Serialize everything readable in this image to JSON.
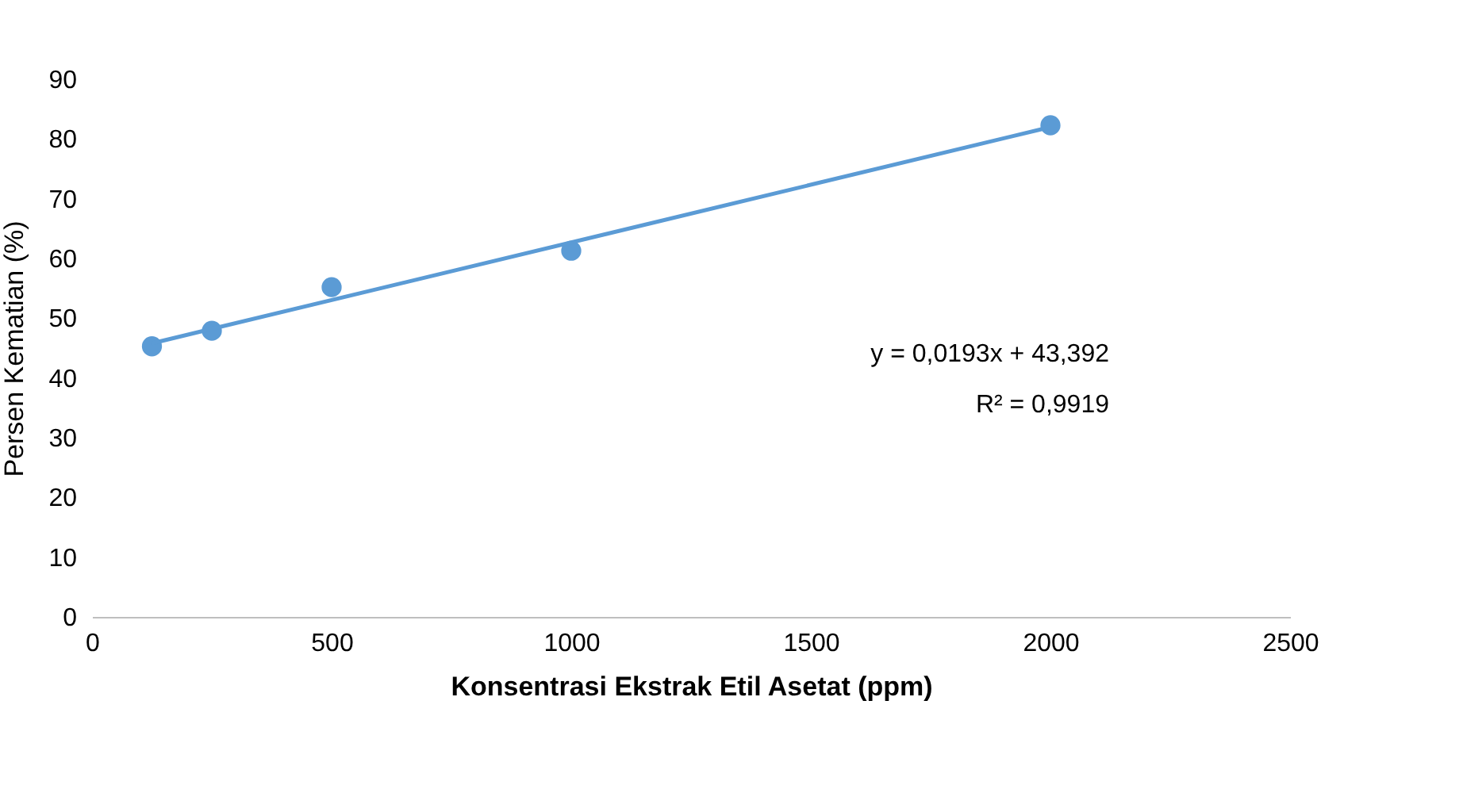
{
  "chart_data": {
    "type": "scatter",
    "xlabel": "Konsentrasi Ekstrak Etil Asetat (ppm)",
    "ylabel": "Persen Kematian (%)",
    "xlim": [
      0,
      2500
    ],
    "xticks": [
      0,
      500,
      1000,
      1500,
      2000,
      2500
    ],
    "ylim": [
      0,
      90
    ],
    "yticks": [
      0,
      10,
      20,
      30,
      40,
      50,
      60,
      70,
      80,
      90
    ],
    "grid": false,
    "marker": "circle",
    "series": [
      {
        "color": "#5b9bd5",
        "x": [
          125,
          250,
          500,
          1000,
          2000
        ],
        "values": [
          45.3,
          47.9,
          55.2,
          61.3,
          82.3
        ]
      },
      {
        "type": "line",
        "color": "#5b9bd5",
        "x": [
          125,
          2000
        ],
        "values": [
          45.8,
          82.0
        ],
        "marker": "none",
        "line_style": "solid"
      }
    ],
    "annotations": [
      "y = 0,0193x + 43,392",
      "R² = 0,9919"
    ]
  }
}
